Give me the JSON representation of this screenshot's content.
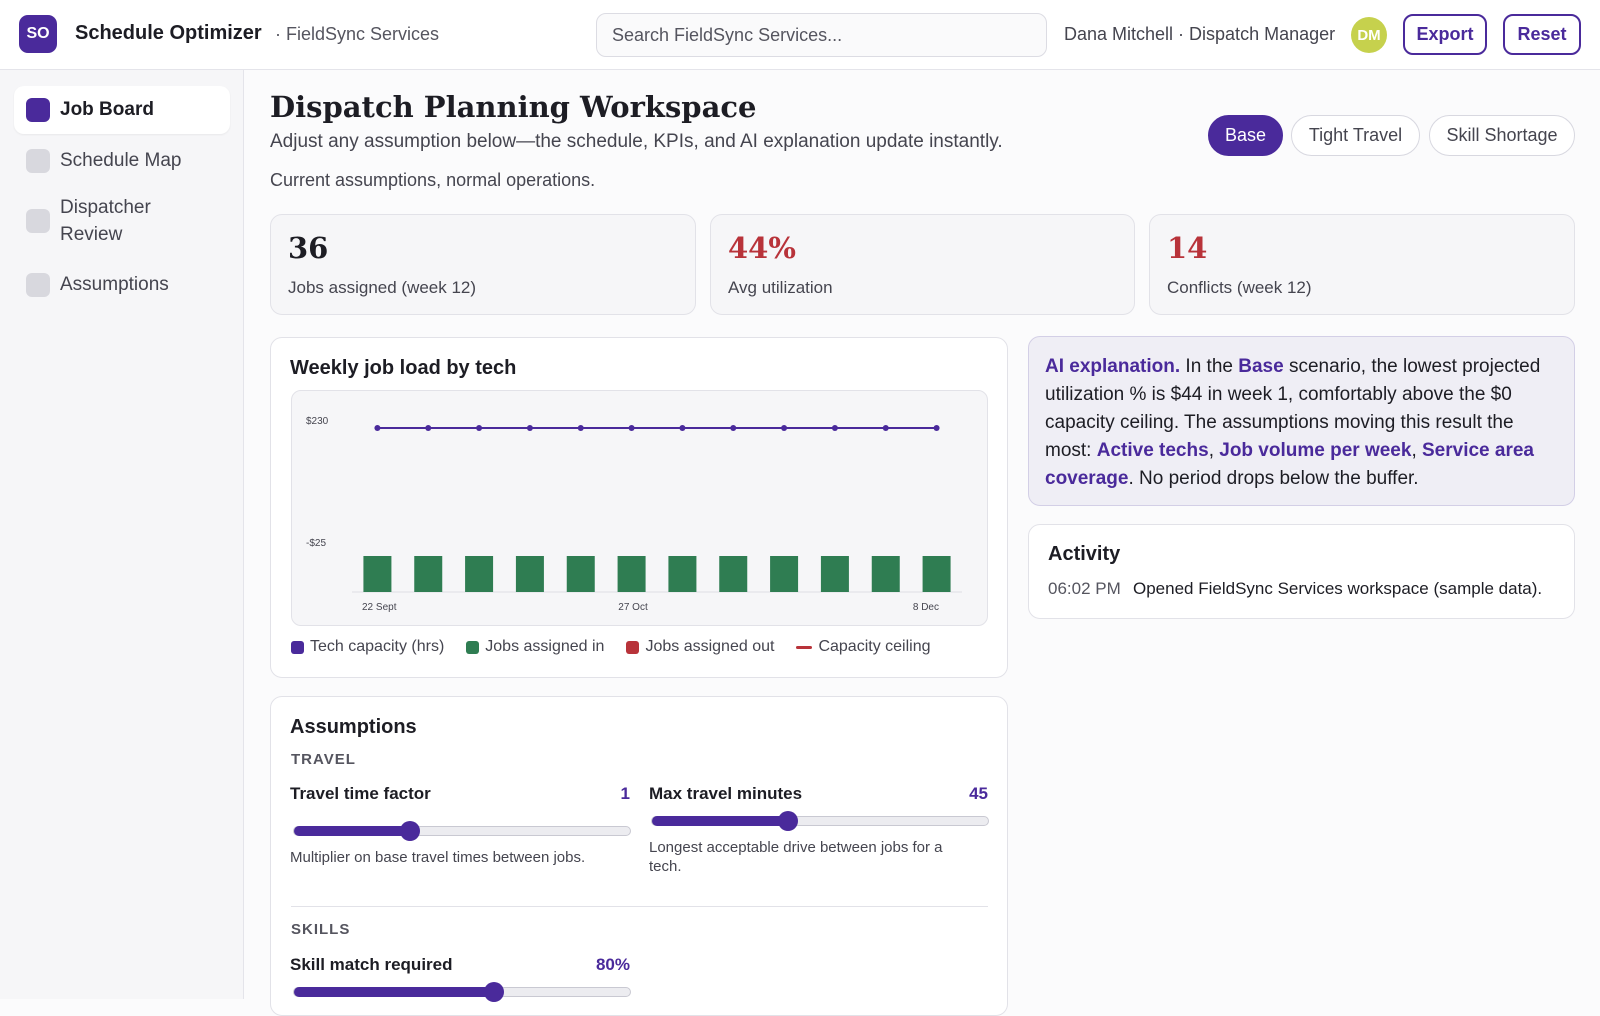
{
  "header": {
    "logo_initials": "SO",
    "app_title": "Schedule Optimizer",
    "org_name": "· FieldSync Services",
    "search_placeholder": "Search FieldSync Services...",
    "user_name": "Dana Mitchell · Dispatch Manager",
    "avatar_initials": "DM",
    "export_label": "Export",
    "reset_label": "Reset"
  },
  "sidebar": {
    "items": [
      {
        "label": "Job Board",
        "active": true
      },
      {
        "label": "Schedule Map",
        "active": false
      },
      {
        "label": "Dispatcher Review",
        "active": false
      },
      {
        "label": "Assumptions",
        "active": false
      }
    ]
  },
  "page": {
    "title": "Dispatch Planning Workspace",
    "subtitle": "Adjust any assumption below—the schedule, KPIs, and AI explanation update instantly.",
    "assumption_note": "Current assumptions, normal operations."
  },
  "scenarios": [
    {
      "label": "Base",
      "active": true
    },
    {
      "label": "Tight Travel",
      "active": false
    },
    {
      "label": "Skill Shortage",
      "active": false
    }
  ],
  "kpis": [
    {
      "value": "36",
      "label": "Jobs assigned (week 12)",
      "alert": false
    },
    {
      "value": "44%",
      "label": "Avg utilization",
      "alert": true
    },
    {
      "value": "14",
      "label": "Conflicts (week 12)",
      "alert": true
    }
  ],
  "chart_card": {
    "title": "Weekly job load by tech"
  },
  "chart_data": {
    "type": "bar",
    "title": "Weekly job load by tech",
    "ytick_labels": [
      "$230",
      "-$25"
    ],
    "x_tick_labels": [
      "22 Sept",
      "27 Oct",
      "8 Dec"
    ],
    "series": [
      {
        "name": "Tech capacity (hrs)",
        "type": "line",
        "color": "#4a2a9b",
        "values": [
          230,
          230,
          230,
          230,
          230,
          230,
          230,
          230,
          230,
          230,
          230,
          230
        ]
      },
      {
        "name": "Jobs assigned in",
        "type": "bar",
        "color": "#2f7d52",
        "values": [
          -25,
          -25,
          -25,
          -25,
          -25,
          -25,
          -25,
          -25,
          -25,
          -25,
          -25,
          -25
        ]
      },
      {
        "name": "Jobs assigned out",
        "type": "bar",
        "color": "#b8333a",
        "values": [
          0,
          0,
          0,
          0,
          0,
          0,
          0,
          0,
          0,
          0,
          0,
          0
        ]
      },
      {
        "name": "Capacity ceiling",
        "type": "line",
        "color": "#b8333a",
        "values": []
      }
    ]
  },
  "ai_explanation": {
    "lead": "AI explanation.",
    "t1": " In the ",
    "scenario": "Base",
    "t2": " scenario, the lowest projected utilization % is $44 in week 1, comfortably above the $0 capacity ceiling. The assumptions moving this result the most: ",
    "driver1": "Active techs",
    "sep1": ", ",
    "driver2": "Job volume per week",
    "sep2": ", ",
    "driver3": "Service area coverage",
    "t3": ". No period drops below the buffer."
  },
  "activity": {
    "title": "Activity",
    "time": "06:02 PM",
    "text": "Opened FieldSync Services workspace (sample data)."
  },
  "assumptions": {
    "title": "Assumptions",
    "travel_section": "TRAVEL",
    "skills_section": "SKILLS",
    "sliders": [
      {
        "label": "Travel time factor",
        "value": "1",
        "fraction": 0.345,
        "help": "Multiplier on base travel times between jobs."
      },
      {
        "label": "Max travel minutes",
        "value": "45",
        "fraction": 0.405,
        "help": "Longest acceptable drive between jobs for a tech."
      },
      {
        "label": "Skill match required",
        "value": "80%",
        "fraction": 0.595,
        "help": ""
      }
    ]
  },
  "colors": {
    "accent": "#4a2a9b",
    "success_bar": "#2f7d52",
    "alert": "#b8333a",
    "avatar": "#c6d14d"
  }
}
